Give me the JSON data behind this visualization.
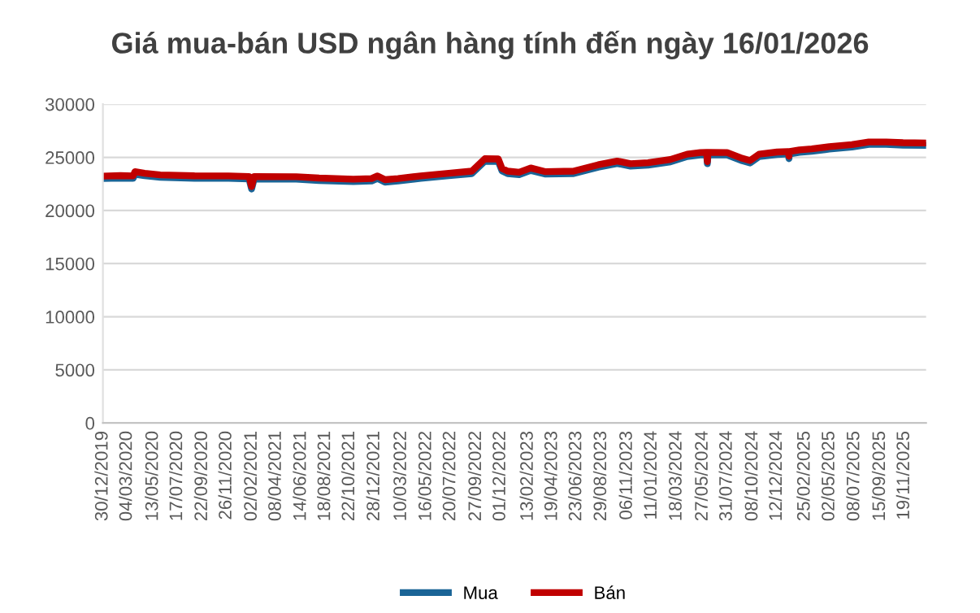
{
  "chart_data": {
    "type": "line",
    "title": "Giá mua-bán USD ngân hàng tính đến ngày 16/01/2026",
    "x": [
      "2019-12-30",
      "2020-02-15",
      "2020-03-20",
      "2020-03-25",
      "2020-04-20",
      "2020-06-01",
      "2020-09-01",
      "2020-12-01",
      "2021-01-25",
      "2021-02-01",
      "2021-02-08",
      "2021-06-01",
      "2021-08-01",
      "2021-11-01",
      "2021-12-20",
      "2022-01-05",
      "2022-01-25",
      "2022-03-01",
      "2022-05-01",
      "2022-07-15",
      "2022-09-15",
      "2022-10-20",
      "2022-11-25",
      "2022-12-05",
      "2022-12-20",
      "2023-01-20",
      "2023-02-20",
      "2023-04-01",
      "2023-06-15",
      "2023-08-20",
      "2023-10-10",
      "2023-11-15",
      "2024-01-01",
      "2024-03-01",
      "2024-04-15",
      "2024-05-20",
      "2024-06-06",
      "2024-06-08",
      "2024-06-10",
      "2024-07-31",
      "2024-09-10",
      "2024-10-01",
      "2024-10-25",
      "2024-12-12",
      "2025-01-11",
      "2025-01-13",
      "2025-01-15",
      "2025-02-10",
      "2025-03-15",
      "2025-05-01",
      "2025-07-01",
      "2025-08-15",
      "2025-10-01",
      "2025-11-15",
      "2026-01-16"
    ],
    "series": [
      {
        "name": "Mua",
        "color": "#1a6496",
        "values": [
          23000,
          23050,
          23020,
          23400,
          23270,
          23120,
          23030,
          23020,
          22970,
          22020,
          22970,
          22950,
          22820,
          22720,
          22770,
          23020,
          22670,
          22770,
          23020,
          23270,
          23470,
          24640,
          24620,
          23720,
          23470,
          23370,
          23770,
          23420,
          23470,
          24070,
          24420,
          24170,
          24270,
          24570,
          25070,
          25220,
          25240,
          24400,
          25240,
          25220,
          24670,
          24470,
          25070,
          25270,
          25320,
          24870,
          25320,
          25470,
          25570,
          25770,
          25970,
          26220,
          26220,
          26150,
          26120
        ]
      },
      {
        "name": "Bán",
        "color": "#c00000",
        "values": [
          23230,
          23280,
          23250,
          23650,
          23500,
          23350,
          23260,
          23250,
          23200,
          22250,
          23200,
          23180,
          23050,
          22950,
          23000,
          23250,
          22900,
          23000,
          23250,
          23500,
          23700,
          24870,
          24850,
          23950,
          23700,
          23600,
          24000,
          23650,
          23700,
          24300,
          24650,
          24400,
          24500,
          24800,
          25300,
          25450,
          25470,
          24600,
          25470,
          25450,
          24900,
          24700,
          25300,
          25500,
          25550,
          25100,
          25550,
          25700,
          25800,
          26000,
          26200,
          26450,
          26450,
          26380,
          26350
        ]
      }
    ],
    "ylim": [
      0,
      30000
    ],
    "yticks": [
      0,
      5000,
      10000,
      15000,
      20000,
      25000,
      30000
    ],
    "xlim": [
      "2019-12-30",
      "2026-01-16"
    ],
    "xticks": [
      {
        "value": "2019-12-30",
        "label": "30/12/2019"
      },
      {
        "value": "2020-03-04",
        "label": "04/03/2020"
      },
      {
        "value": "2020-05-13",
        "label": "13/05/2020"
      },
      {
        "value": "2020-07-17",
        "label": "17/07/2020"
      },
      {
        "value": "2020-09-22",
        "label": "22/09/2020"
      },
      {
        "value": "2020-11-26",
        "label": "26/11/2020"
      },
      {
        "value": "2021-02-02",
        "label": "02/02/2021"
      },
      {
        "value": "2021-04-08",
        "label": "08/04/2021"
      },
      {
        "value": "2021-06-14",
        "label": "14/06/2021"
      },
      {
        "value": "2021-08-18",
        "label": "18/08/2021"
      },
      {
        "value": "2021-10-22",
        "label": "22/10/2021"
      },
      {
        "value": "2021-12-28",
        "label": "28/12/2021"
      },
      {
        "value": "2022-03-10",
        "label": "10/03/2022"
      },
      {
        "value": "2022-05-16",
        "label": "16/05/2022"
      },
      {
        "value": "2022-07-20",
        "label": "20/07/2022"
      },
      {
        "value": "2022-09-27",
        "label": "27/09/2022"
      },
      {
        "value": "2022-12-01",
        "label": "01/12/2022"
      },
      {
        "value": "2023-02-13",
        "label": "13/02/2023"
      },
      {
        "value": "2023-04-19",
        "label": "19/04/2023"
      },
      {
        "value": "2023-06-23",
        "label": "23/06/2023"
      },
      {
        "value": "2023-08-29",
        "label": "29/08/2023"
      },
      {
        "value": "2023-11-06",
        "label": "06/11/2023"
      },
      {
        "value": "2024-01-11",
        "label": "11/01/2024"
      },
      {
        "value": "2024-03-18",
        "label": "18/03/2024"
      },
      {
        "value": "2024-05-27",
        "label": "27/05/2024"
      },
      {
        "value": "2024-07-31",
        "label": "31/07/2024"
      },
      {
        "value": "2024-10-08",
        "label": "08/10/2024"
      },
      {
        "value": "2024-12-12",
        "label": "12/12/2024"
      },
      {
        "value": "2025-02-25",
        "label": "25/02/2025"
      },
      {
        "value": "2025-05-02",
        "label": "02/05/2025"
      },
      {
        "value": "2025-07-08",
        "label": "08/07/2025"
      },
      {
        "value": "2025-09-15",
        "label": "15/09/2025"
      },
      {
        "value": "2025-11-19",
        "label": "19/11/2025"
      }
    ],
    "grid": "y",
    "legend": "bottom",
    "marker": "none",
    "line_style": "solid"
  }
}
